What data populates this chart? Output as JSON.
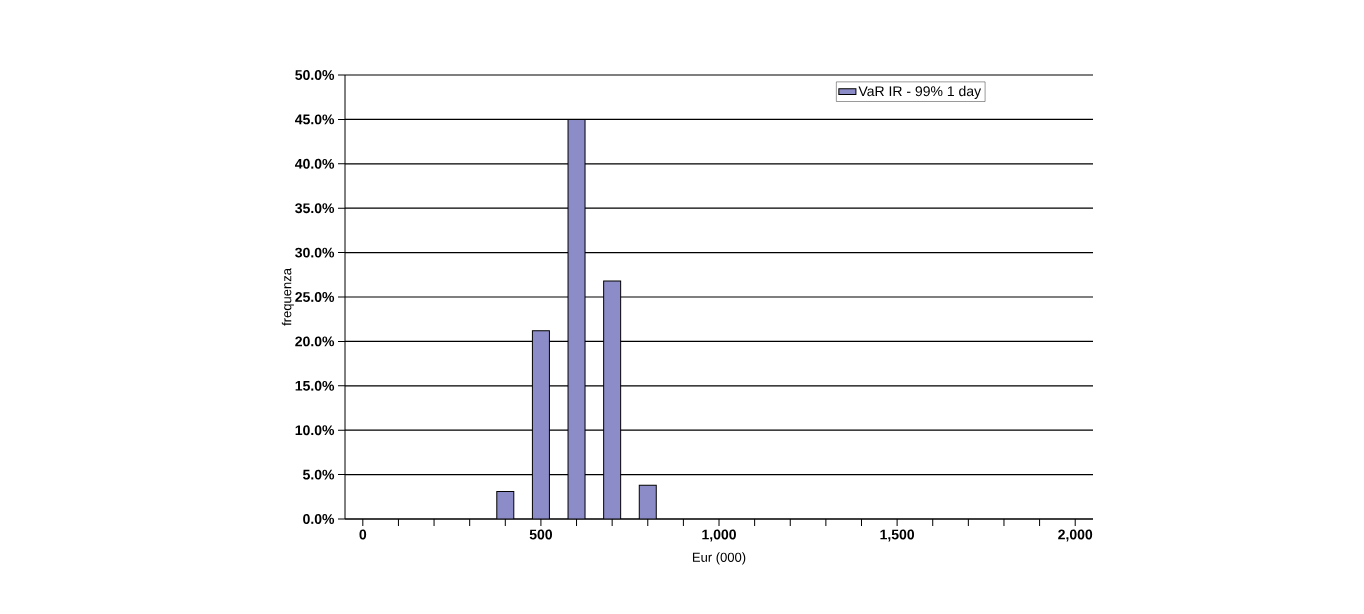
{
  "chart_data": {
    "type": "bar",
    "xlabel": "Eur (000)",
    "ylabel": "frequenza",
    "x": [
      400,
      500,
      600,
      700,
      800
    ],
    "series": [
      {
        "name": "VaR IR - 99% 1 day",
        "color": "#8c8cc8",
        "values": [
          3.1,
          21.2,
          45.0,
          26.8,
          3.8
        ]
      }
    ],
    "xlim": [
      -50,
      2050
    ],
    "xticks": [
      0,
      {
        "value": 100,
        "label": null
      },
      {
        "value": 200,
        "label": null
      },
      {
        "value": 300,
        "label": null
      },
      {
        "value": 400,
        "label": null
      },
      500,
      {
        "value": 600,
        "label": null
      },
      {
        "value": 700,
        "label": null
      },
      {
        "value": 800,
        "label": null
      },
      {
        "value": 900,
        "label": null
      },
      {
        "value": 1000,
        "label": "1,000"
      },
      {
        "value": 1100,
        "label": null
      },
      {
        "value": 1200,
        "label": null
      },
      {
        "value": 1300,
        "label": null
      },
      {
        "value": 1400,
        "label": null
      },
      {
        "value": 1500,
        "label": "1,500"
      },
      {
        "value": 1600,
        "label": null
      },
      {
        "value": 1700,
        "label": null
      },
      {
        "value": 1800,
        "label": null
      },
      {
        "value": 1900,
        "label": null
      },
      {
        "value": 2000,
        "label": "2,000"
      }
    ],
    "ylim": [
      0,
      50
    ],
    "yticks": [
      {
        "value": 0,
        "label": "0.0%"
      },
      {
        "value": 5,
        "label": "5.0%"
      },
      {
        "value": 10,
        "label": "10.0%"
      },
      {
        "value": 15,
        "label": "15.0%"
      },
      {
        "value": 20,
        "label": "20.0%"
      },
      {
        "value": 25,
        "label": "25.0%"
      },
      {
        "value": 30,
        "label": "30.0%"
      },
      {
        "value": 35,
        "label": "35.0%"
      },
      {
        "value": 40,
        "label": "40.0%"
      },
      {
        "value": 45,
        "label": "45.0%"
      },
      {
        "value": 50,
        "label": "50.0%"
      }
    ],
    "grid": "y",
    "legend": "top right"
  }
}
